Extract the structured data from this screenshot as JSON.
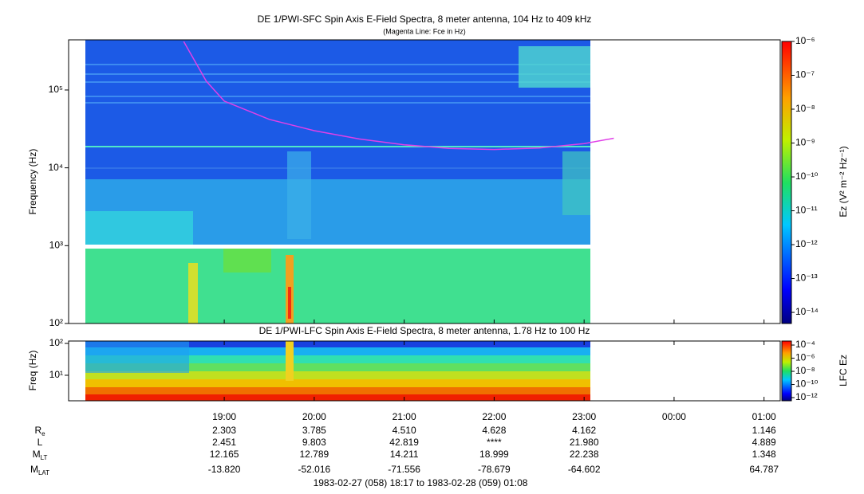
{
  "chart_data": [
    {
      "type": "spectrogram",
      "title": "DE 1/PWI-SFC  Spin Axis E-Field Spectra, 8 meter antenna, 104 Hz to 409 kHz",
      "subtitle": "(Magenta Line: Fce in Hz)",
      "y_label": "Frequency (Hz)",
      "colorbar_label": "Ez (V² m⁻² Hz⁻¹)",
      "log_y": true,
      "ylim": [
        100,
        441000
      ],
      "yticks": [
        {
          "value": 100,
          "label": "10²"
        },
        {
          "value": 1000,
          "label": "10³"
        },
        {
          "value": 10000,
          "label": "10⁴"
        },
        {
          "value": 100000,
          "label": "10⁵"
        }
      ],
      "colorbar_lim": [
        4.7e-15,
        1e-06
      ],
      "colorbar_ticks": [
        {
          "value": 1e-06,
          "label": "10⁻⁶"
        },
        {
          "value": 1e-07,
          "label": "10⁻⁷"
        },
        {
          "value": 1e-08,
          "label": "10⁻⁸"
        },
        {
          "value": 1e-09,
          "label": "10⁻⁹"
        },
        {
          "value": 1e-10,
          "label": "10⁻¹⁰"
        },
        {
          "value": 1e-11,
          "label": "10⁻¹¹"
        },
        {
          "value": 1e-12,
          "label": "10⁻¹²"
        },
        {
          "value": 1e-13,
          "label": "10⁻¹³"
        },
        {
          "value": 1e-14,
          "label": "10⁻¹⁴"
        }
      ],
      "series": [
        {
          "color": "#e040e8",
          "x": [
            18.55,
            18.8,
            19.0,
            19.5,
            20.0,
            20.5,
            21.0,
            21.5,
            22.0,
            22.5,
            23.0,
            23.33
          ],
          "values": [
            420000,
            130000,
            72000,
            42000,
            30000,
            23500,
            19800,
            17800,
            17200,
            18000,
            20500,
            24000
          ]
        }
      ]
    },
    {
      "type": "spectrogram",
      "title": "DE 1/PWI-LFC  Spin Axis E-Field Spectra, 8 meter antenna, 1.78 Hz to 100 Hz",
      "y_label": "Freq (Hz)",
      "colorbar_label": "LFC Ez",
      "log_y": true,
      "ylim": [
        1.58,
        119
      ],
      "yticks": [
        {
          "value": 10,
          "label": "10¹"
        },
        {
          "value": 100,
          "label": "10²"
        }
      ],
      "colorbar_lim": [
        3.3e-13,
        0.00041
      ],
      "colorbar_ticks": [
        {
          "value": 0.0001,
          "label": "10⁻⁴"
        },
        {
          "value": 1e-06,
          "label": "10⁻⁶"
        },
        {
          "value": 1e-08,
          "label": "10⁻⁸"
        },
        {
          "value": 1e-10,
          "label": "10⁻¹⁰"
        },
        {
          "value": 1e-12,
          "label": "10⁻¹²"
        }
      ]
    }
  ],
  "time_axis": {
    "xlim": [
      17.27,
      25.18
    ],
    "xticks": [
      {
        "value": 19,
        "label": "19:00"
      },
      {
        "value": 20,
        "label": "20:00"
      },
      {
        "value": 21,
        "label": "21:00"
      },
      {
        "value": 22,
        "label": "22:00"
      },
      {
        "value": 23,
        "label": "23:00"
      },
      {
        "value": 24,
        "label": "00:00"
      },
      {
        "value": 25,
        "label": "01:00"
      }
    ]
  },
  "ephemeris": {
    "rows": [
      {
        "label": "R",
        "sub": "e",
        "values": [
          "2.303",
          "3.785",
          "4.510",
          "4.628",
          "4.162",
          null,
          "1.146"
        ]
      },
      {
        "label": "L",
        "values": [
          "2.451",
          "9.803",
          "42.819",
          "****",
          "21.980",
          null,
          "4.889"
        ]
      },
      {
        "label": "M",
        "sub": "LT",
        "values": [
          "12.165",
          "12.789",
          "14.211",
          "18.999",
          "22.238",
          null,
          "1.348"
        ]
      },
      {
        "label": "M",
        "sub": "LAT",
        "values": [
          "-13.820",
          "-52.016",
          "-71.556",
          "-78.679",
          "-64.602",
          null,
          "64.787"
        ]
      }
    ],
    "footer": "1983-02-27 (058) 18:17 to 1983-02-28 (059) 01:08"
  }
}
